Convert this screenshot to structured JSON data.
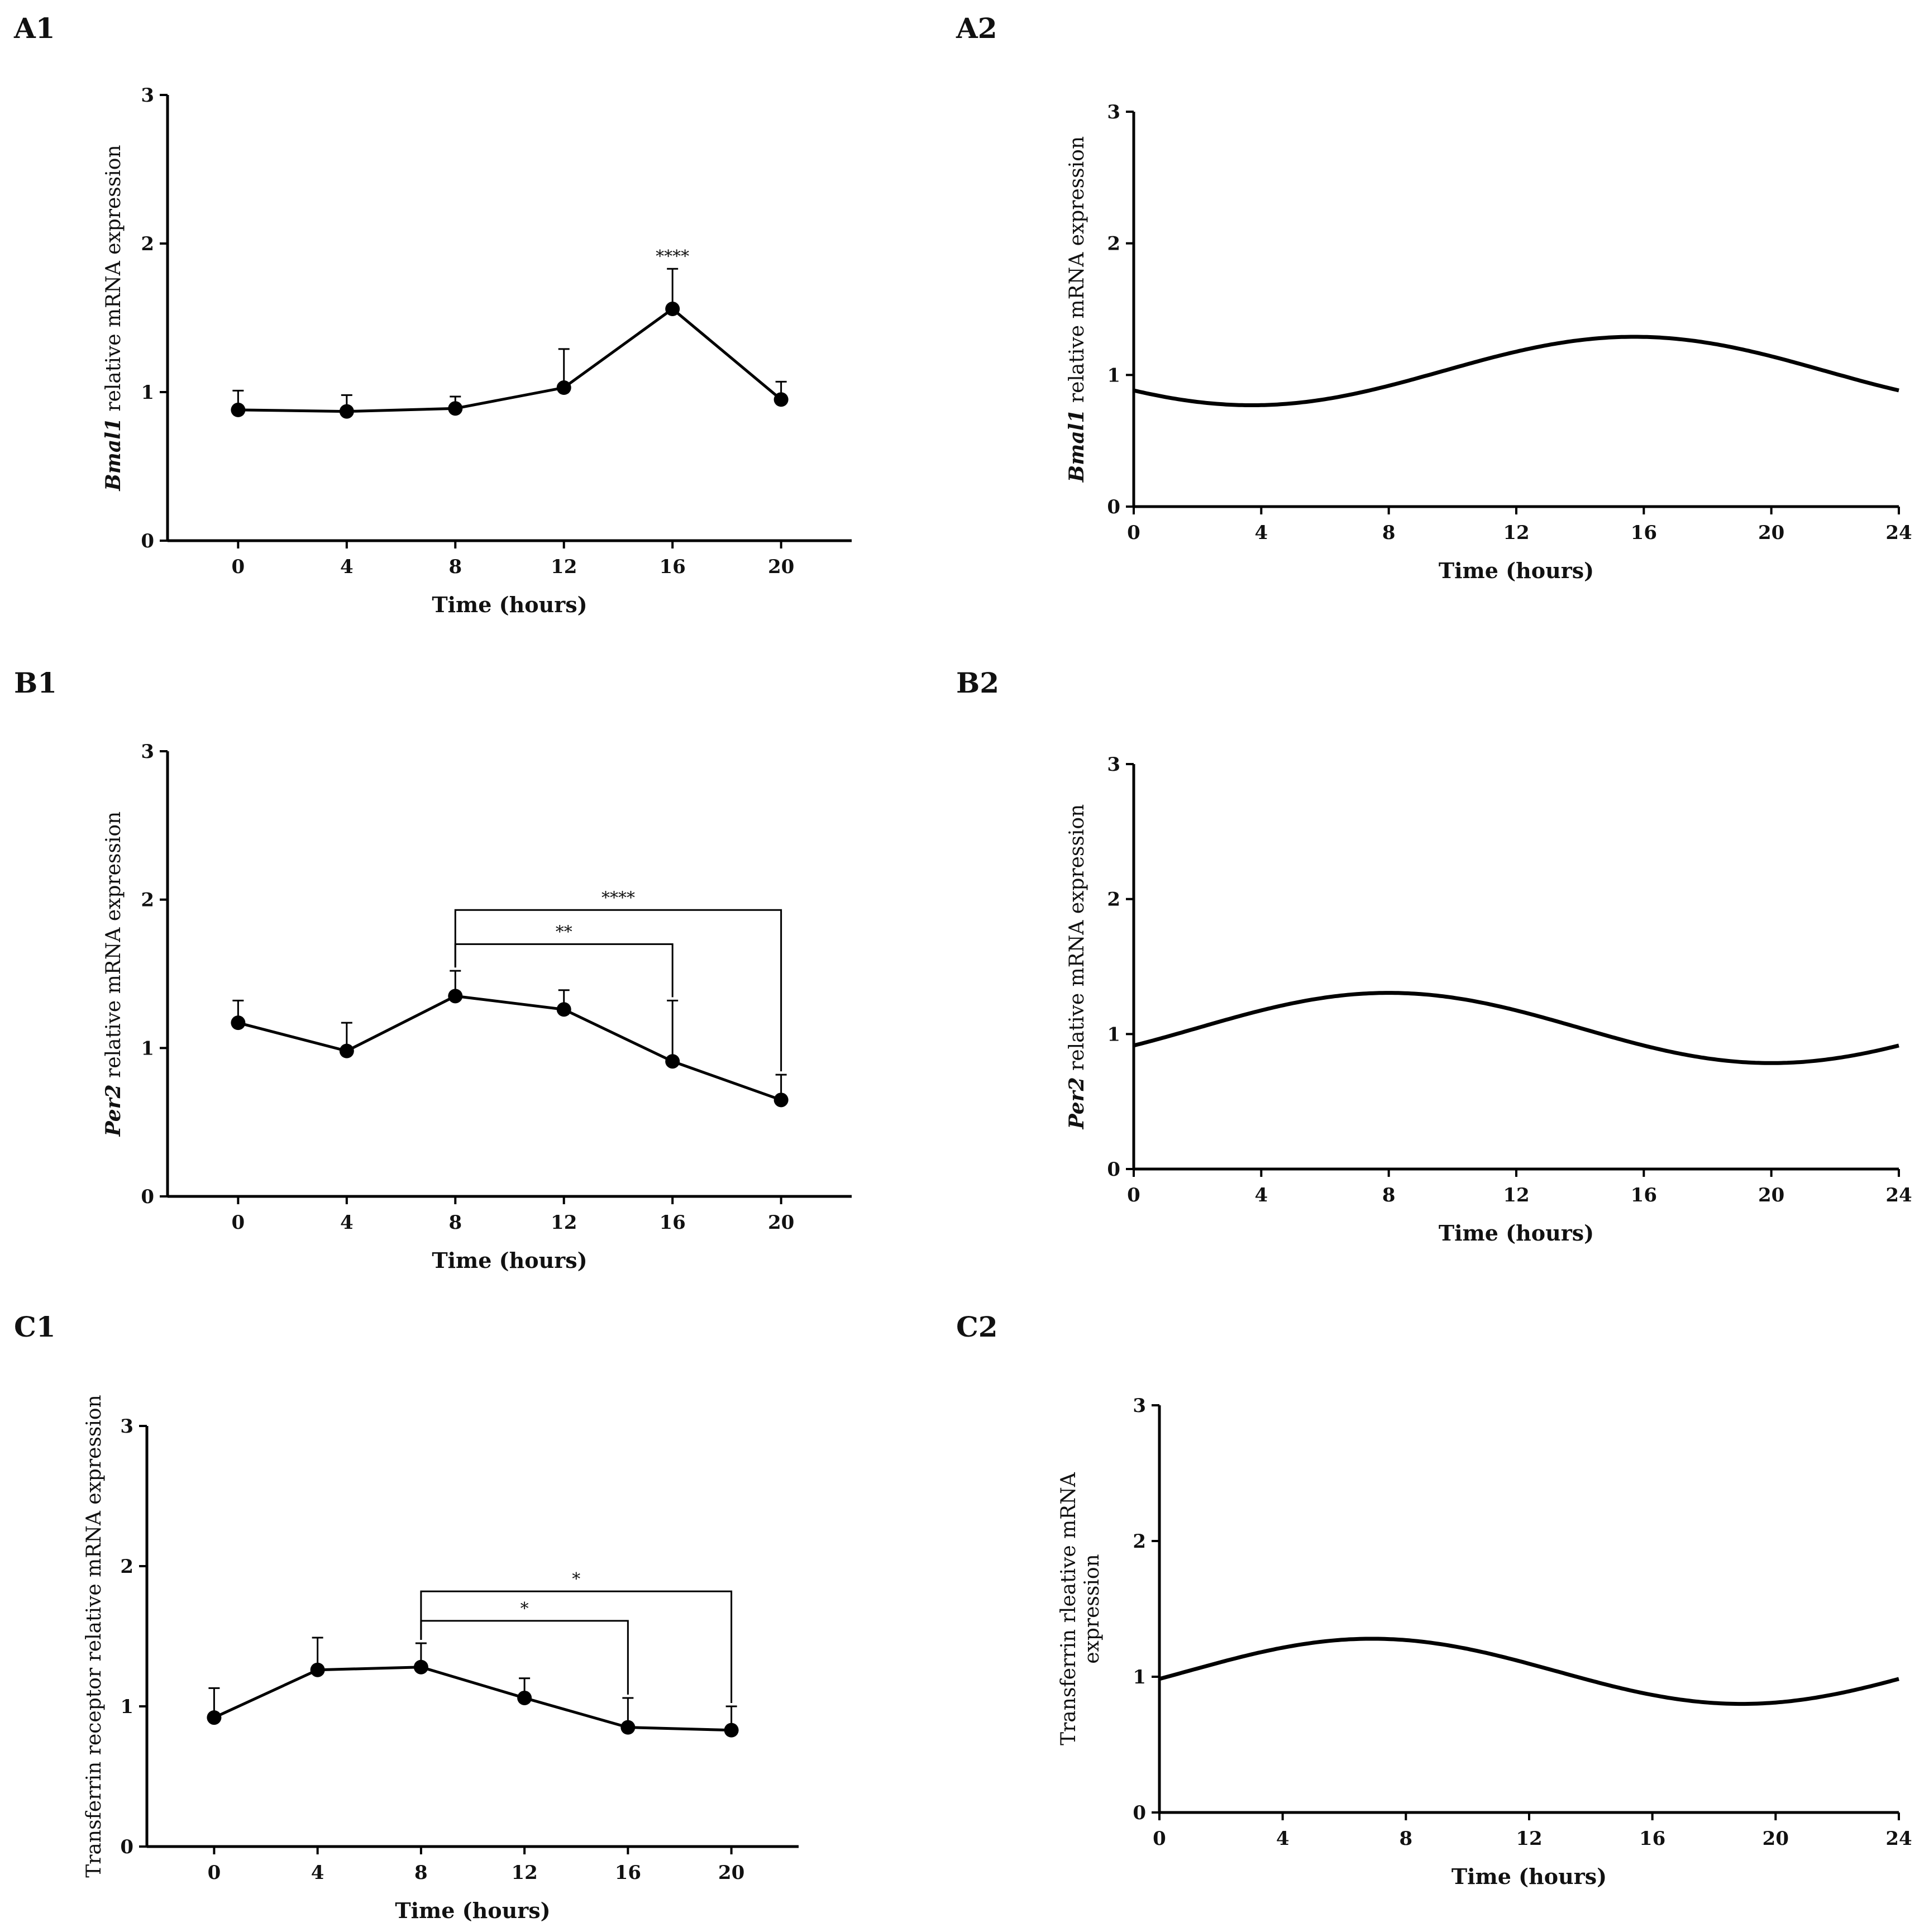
{
  "figure": {
    "description": "Six-panel figure of relative mRNA expression over time",
    "colors": {
      "ink": "#000000",
      "background": "#ffffff"
    }
  },
  "chart_data": [
    {
      "id": "A1",
      "panel_label": "A1",
      "type": "line",
      "title": "",
      "xlabel": "Time (hours)",
      "ylabel_gene": "Bmal1",
      "ylabel_rest": " relative mRNA expression",
      "x": [
        0,
        4,
        8,
        12,
        16,
        20
      ],
      "x_ticks": [
        "0",
        "4",
        "8",
        "12",
        "16",
        "20"
      ],
      "xlim": [
        -2.6,
        22.6
      ],
      "ylim": [
        0,
        3
      ],
      "y_ticks": [
        "0",
        "1",
        "2",
        "3"
      ],
      "series": [
        {
          "name": "Bmal1",
          "values": [
            0.88,
            0.87,
            0.89,
            1.03,
            1.56,
            0.95
          ],
          "errors": [
            0.13,
            0.11,
            0.08,
            0.26,
            0.27,
            0.12
          ]
        }
      ],
      "annotations": [
        {
          "x": 16,
          "text": "****"
        }
      ],
      "brackets": []
    },
    {
      "id": "A2",
      "panel_label": "A2",
      "type": "line",
      "title": "",
      "xlabel": "Time (hours)",
      "ylabel_gene": "Bmal1",
      "ylabel_rest": " relative mRNA expression",
      "x_ticks": [
        "0",
        "4",
        "8",
        "12",
        "16",
        "20",
        "24"
      ],
      "xlim": [
        0,
        24
      ],
      "ylim": [
        0,
        3
      ],
      "y_ticks": [
        "0",
        "1",
        "2",
        "3"
      ],
      "cosinor": {
        "mesor": 1.03,
        "amplitude": 0.26,
        "peak_hour": 15.7,
        "period": 24
      }
    },
    {
      "id": "B1",
      "panel_label": "B1",
      "type": "line",
      "title": "",
      "xlabel": "Time (hours)",
      "ylabel_gene": "Per2",
      "ylabel_rest": " relative mRNA expression",
      "x": [
        0,
        4,
        8,
        12,
        16,
        20
      ],
      "x_ticks": [
        "0",
        "4",
        "8",
        "12",
        "16",
        "20"
      ],
      "xlim": [
        -2.6,
        22.6
      ],
      "ylim": [
        0,
        3
      ],
      "y_ticks": [
        "0",
        "1",
        "2",
        "3"
      ],
      "series": [
        {
          "name": "Per2",
          "values": [
            1.17,
            0.98,
            1.35,
            1.26,
            0.91,
            0.65
          ],
          "errors": [
            0.15,
            0.19,
            0.17,
            0.13,
            0.41,
            0.17
          ]
        }
      ],
      "annotations": [],
      "brackets": [
        {
          "from": 8,
          "to": 16,
          "y": 1.7,
          "text": "**"
        },
        {
          "from": 8,
          "to": 20,
          "y": 1.93,
          "text": "****"
        }
      ]
    },
    {
      "id": "B2",
      "panel_label": "B2",
      "type": "line",
      "title": "",
      "xlabel": "Time (hours)",
      "ylabel_gene": "Per2",
      "ylabel_rest": " relative mRNA expression",
      "x_ticks": [
        "0",
        "4",
        "8",
        "12",
        "16",
        "20",
        "24"
      ],
      "xlim": [
        0,
        24
      ],
      "ylim": [
        0,
        3
      ],
      "y_ticks": [
        "0",
        "1",
        "2",
        "3"
      ],
      "cosinor": {
        "mesor": 1.045,
        "amplitude": 0.26,
        "peak_hour": 8.0,
        "period": 24
      }
    },
    {
      "id": "C1",
      "panel_label": "C1",
      "type": "line",
      "title": "",
      "xlabel": "Time (hours)",
      "ylabel_gene": "",
      "ylabel_rest": "Transferrin receptor relative mRNA expression",
      "x": [
        0,
        4,
        8,
        12,
        16,
        20
      ],
      "x_ticks": [
        "0",
        "4",
        "8",
        "12",
        "16",
        "20"
      ],
      "xlim": [
        -2.6,
        22.6
      ],
      "ylim": [
        0,
        3
      ],
      "y_ticks": [
        "0",
        "1",
        "2",
        "3"
      ],
      "series": [
        {
          "name": "Transferrin receptor",
          "values": [
            0.92,
            1.26,
            1.28,
            1.06,
            0.85,
            0.83
          ],
          "errors": [
            0.21,
            0.23,
            0.17,
            0.14,
            0.21,
            0.17
          ]
        }
      ],
      "annotations": [],
      "brackets": [
        {
          "from": 8,
          "to": 16,
          "y": 1.61,
          "text": "*"
        },
        {
          "from": 8,
          "to": 20,
          "y": 1.82,
          "text": "*"
        }
      ]
    },
    {
      "id": "C2",
      "panel_label": "C2",
      "type": "line",
      "title": "",
      "xlabel": "Time (hours)",
      "ylabel_line1": "Transferrin rleative mRNA",
      "ylabel_line2": "expression",
      "x_ticks": [
        "0",
        "4",
        "8",
        "12",
        "16",
        "20",
        "24"
      ],
      "xlim": [
        0,
        24
      ],
      "ylim": [
        0,
        3
      ],
      "y_ticks": [
        "0",
        "1",
        "2",
        "3"
      ],
      "cosinor": {
        "mesor": 1.04,
        "amplitude": 0.24,
        "peak_hour": 6.9,
        "period": 24
      }
    }
  ]
}
